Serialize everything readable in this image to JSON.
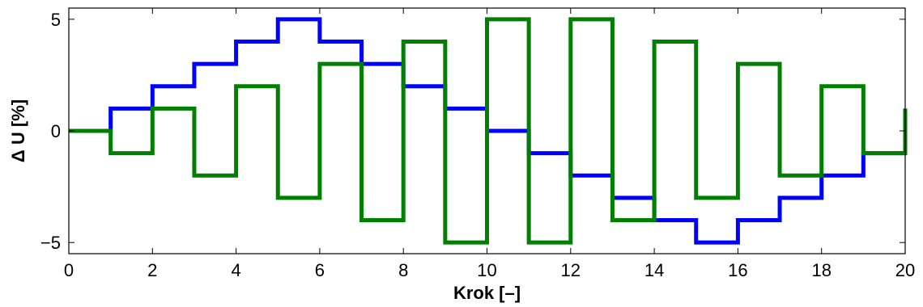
{
  "chart_data": {
    "type": "line",
    "step": true,
    "title": "",
    "xlabel": "Krok [–]",
    "ylabel": "Δ U [%]",
    "xlim": [
      0,
      20
    ],
    "ylim": [
      -5.5,
      5.5
    ],
    "xticks": [
      0,
      2,
      4,
      6,
      8,
      10,
      12,
      14,
      16,
      18,
      20
    ],
    "yticks": [
      -5,
      0,
      5
    ],
    "grid": false,
    "series": [
      {
        "color": "#0000ff",
        "x": [
          0,
          1,
          2,
          3,
          4,
          5,
          6,
          7,
          8,
          9,
          10,
          11,
          12,
          13,
          14,
          15,
          16,
          17,
          18,
          19,
          20
        ],
        "values": [
          0,
          1,
          2,
          3,
          4,
          5,
          4,
          3,
          2,
          1,
          0,
          -1,
          -2,
          -3,
          -4,
          -5,
          -4,
          -3,
          -2,
          -1,
          -1
        ]
      },
      {
        "color": "#007f00",
        "x": [
          0,
          1,
          2,
          3,
          4,
          5,
          6,
          7,
          8,
          9,
          10,
          11,
          12,
          13,
          14,
          15,
          16,
          17,
          18,
          19,
          20
        ],
        "values": [
          0,
          -1,
          1,
          -2,
          2,
          -3,
          3,
          -4,
          4,
          -5,
          5,
          -5,
          5,
          -4,
          4,
          -3,
          3,
          -2,
          2,
          -1,
          1
        ]
      }
    ]
  }
}
